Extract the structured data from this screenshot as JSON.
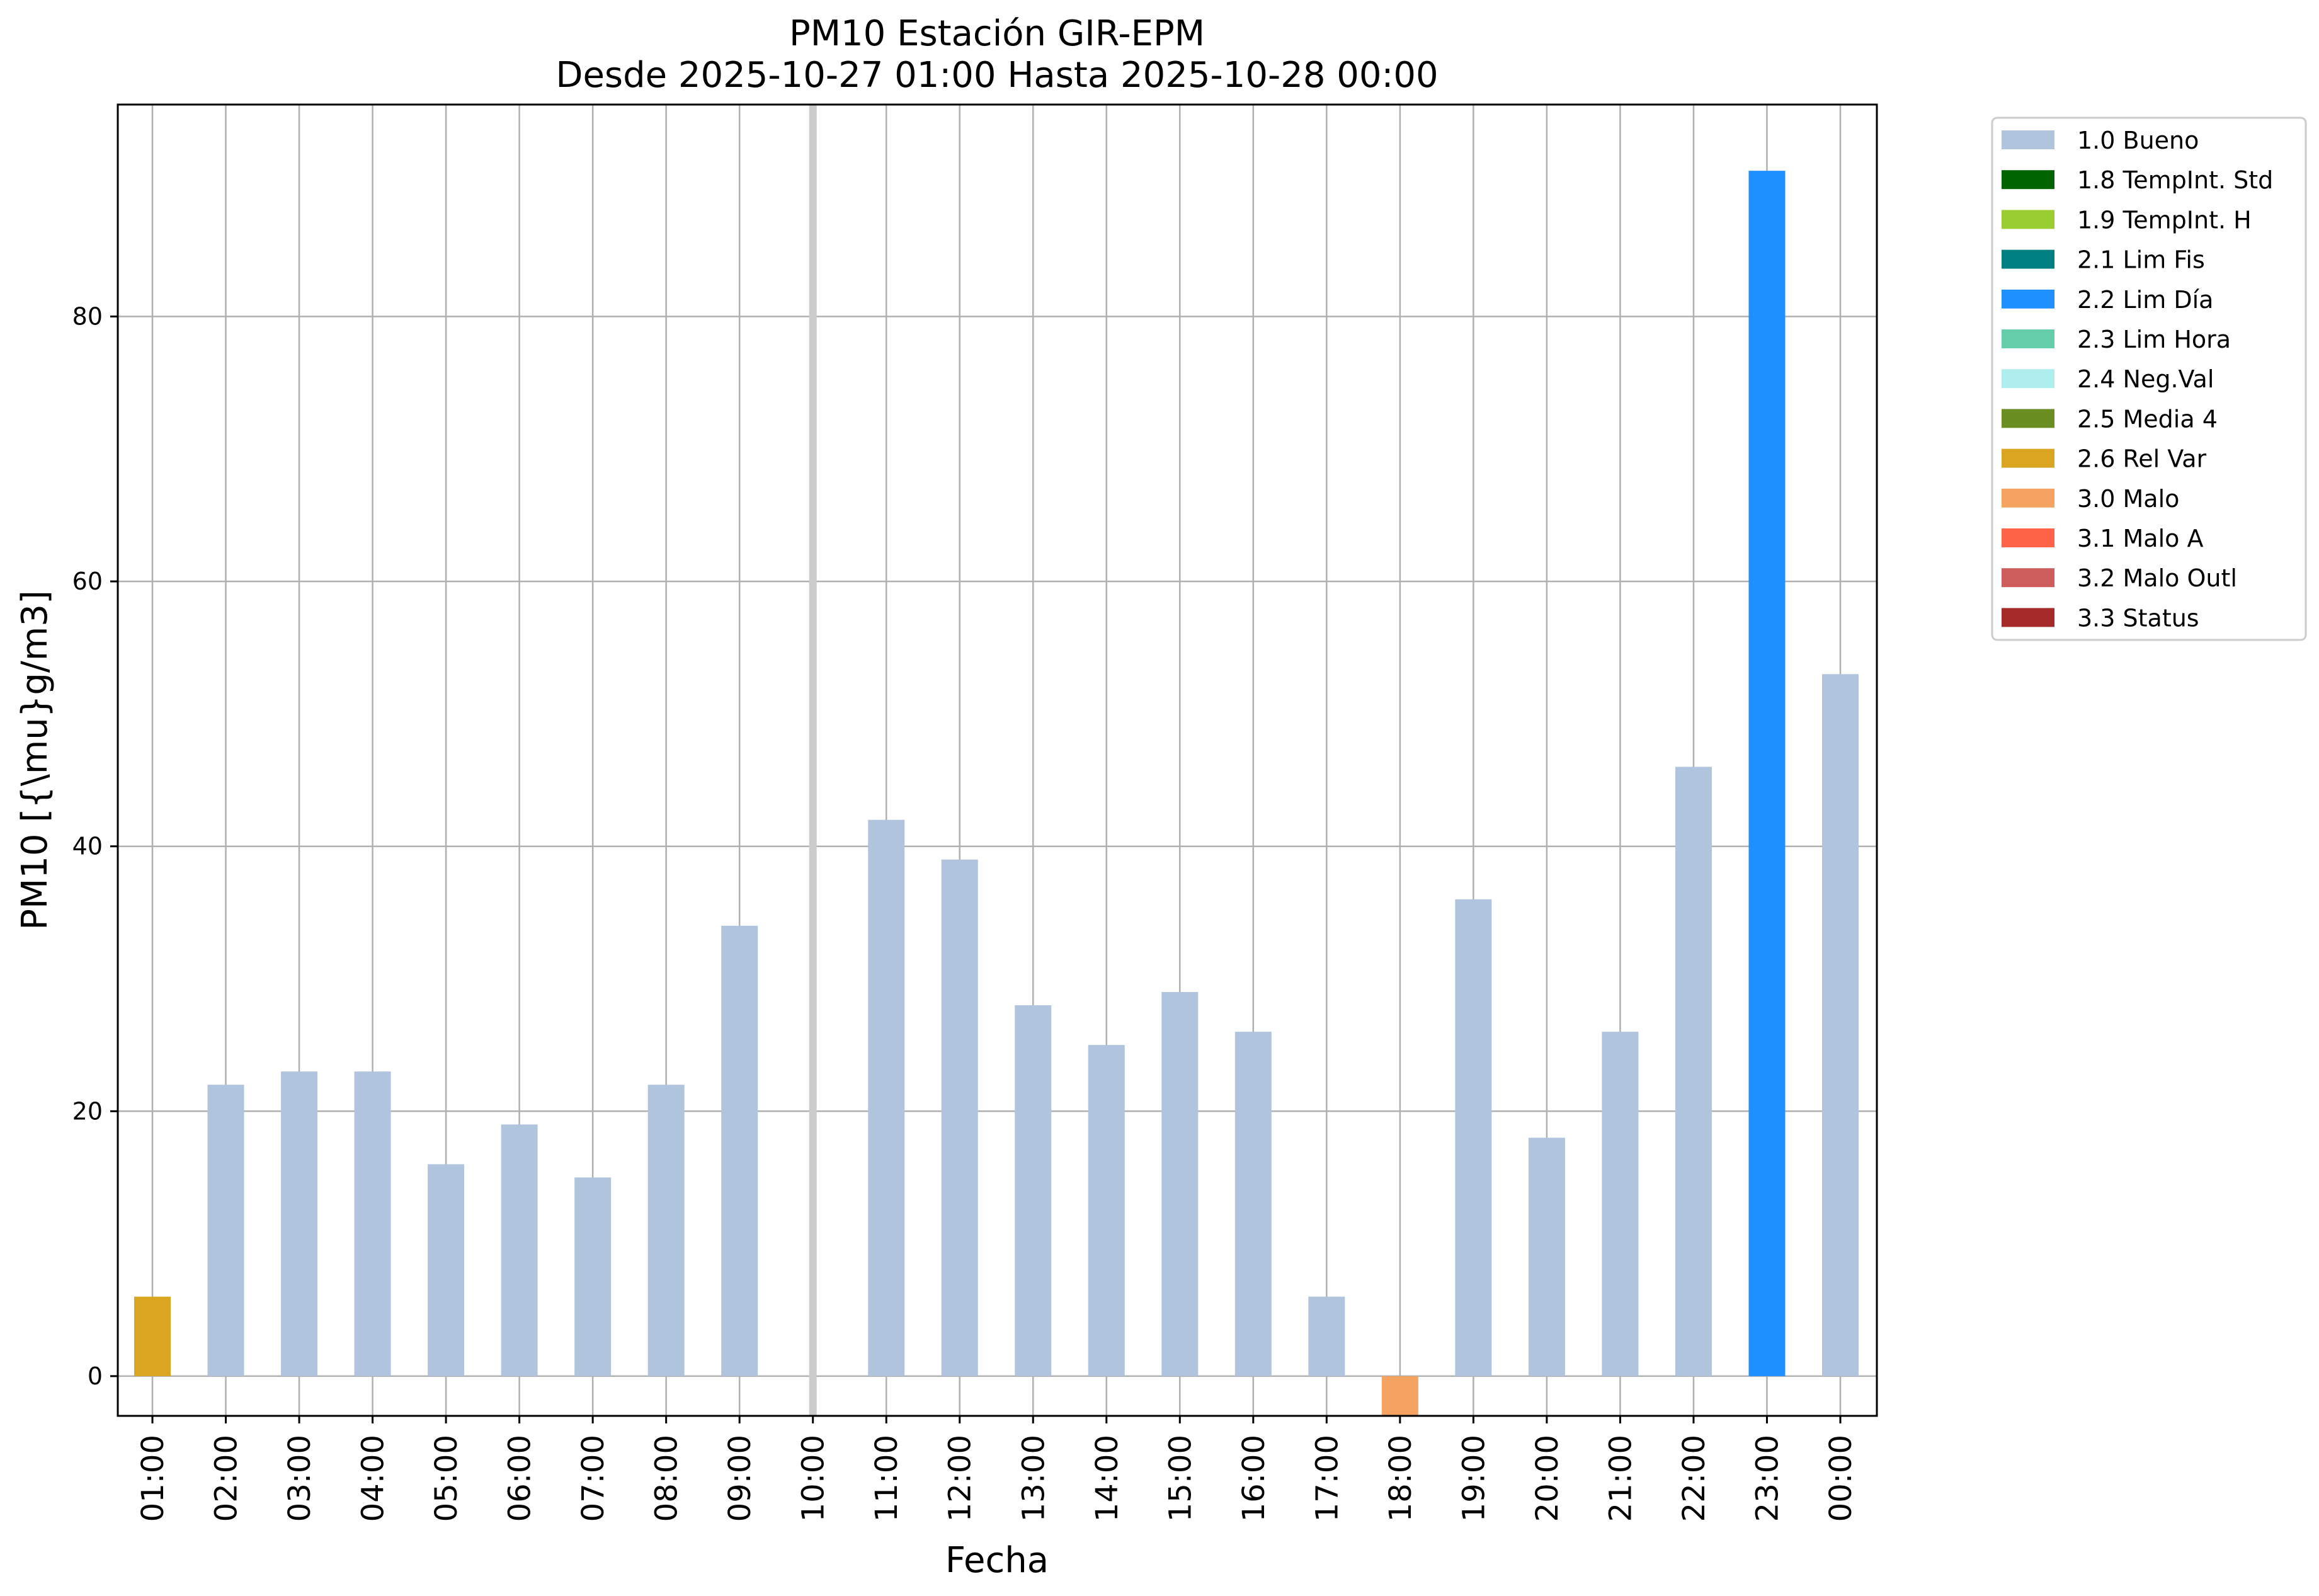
{
  "chart_data": {
    "type": "bar",
    "title": "PM10 Estación GIR-EPM",
    "subtitle": "Desde 2025-10-27 01:00 Hasta 2025-10-28 00:00",
    "xlabel": "Fecha",
    "ylabel": "PM10 [{\\mu}g/m3]",
    "ylim": [
      -3,
      96
    ],
    "yticks": [
      0,
      20,
      40,
      60,
      80
    ],
    "grid": true,
    "legend_position": "outside-right-top",
    "categories": [
      "01:00",
      "02:00",
      "03:00",
      "04:00",
      "05:00",
      "06:00",
      "07:00",
      "08:00",
      "09:00",
      "10:00",
      "11:00",
      "12:00",
      "13:00",
      "14:00",
      "15:00",
      "16:00",
      "17:00",
      "18:00",
      "19:00",
      "20:00",
      "21:00",
      "22:00",
      "23:00",
      "00:00"
    ],
    "values": [
      6,
      22,
      23,
      23,
      16,
      19,
      15,
      22,
      34,
      null,
      42,
      39,
      28,
      25,
      29,
      26,
      6,
      -3,
      36,
      18,
      26,
      46,
      91,
      53
    ],
    "bar_flags": [
      "2.6 Rel Var",
      "1.0 Bueno",
      "1.0 Bueno",
      "1.0 Bueno",
      "1.0 Bueno",
      "1.0 Bueno",
      "1.0 Bueno",
      "1.0 Bueno",
      "1.0 Bueno",
      null,
      "1.0 Bueno",
      "1.0 Bueno",
      "1.0 Bueno",
      "1.0 Bueno",
      "1.0 Bueno",
      "1.0 Bueno",
      "1.0 Bueno",
      "3.0 Malo",
      "1.0 Bueno",
      "1.0 Bueno",
      "1.0 Bueno",
      "1.0 Bueno",
      "2.2 Lim Día",
      "1.0 Bueno"
    ],
    "missing_marker_category": "10:00",
    "legend": [
      {
        "label": "1.0 Bueno",
        "color": "#b0c4de"
      },
      {
        "label": "1.8 TempInt. Std",
        "color": "#006400"
      },
      {
        "label": "1.9 TempInt. H",
        "color": "#9acd32"
      },
      {
        "label": "2.1 Lim Fis",
        "color": "#008080"
      },
      {
        "label": "2.2 Lim Día",
        "color": "#1e90ff"
      },
      {
        "label": "2.3 Lim Hora",
        "color": "#66cdaa"
      },
      {
        "label": "2.4 Neg.Val",
        "color": "#afeeee"
      },
      {
        "label": "2.5 Media 4",
        "color": "#6b8e23"
      },
      {
        "label": "2.6 Rel Var",
        "color": "#daa520"
      },
      {
        "label": "3.0 Malo",
        "color": "#f4a460"
      },
      {
        "label": "3.1 Malo A",
        "color": "#ff6347"
      },
      {
        "label": "3.2 Malo Outl",
        "color": "#cd5c5c"
      },
      {
        "label": "3.3 Status",
        "color": "#a52a2a"
      }
    ],
    "colors": {
      "grid": "#b0b0b0",
      "missing_marker": "#cccccc",
      "axes": "#000000",
      "legend_border": "#cccccc"
    }
  }
}
